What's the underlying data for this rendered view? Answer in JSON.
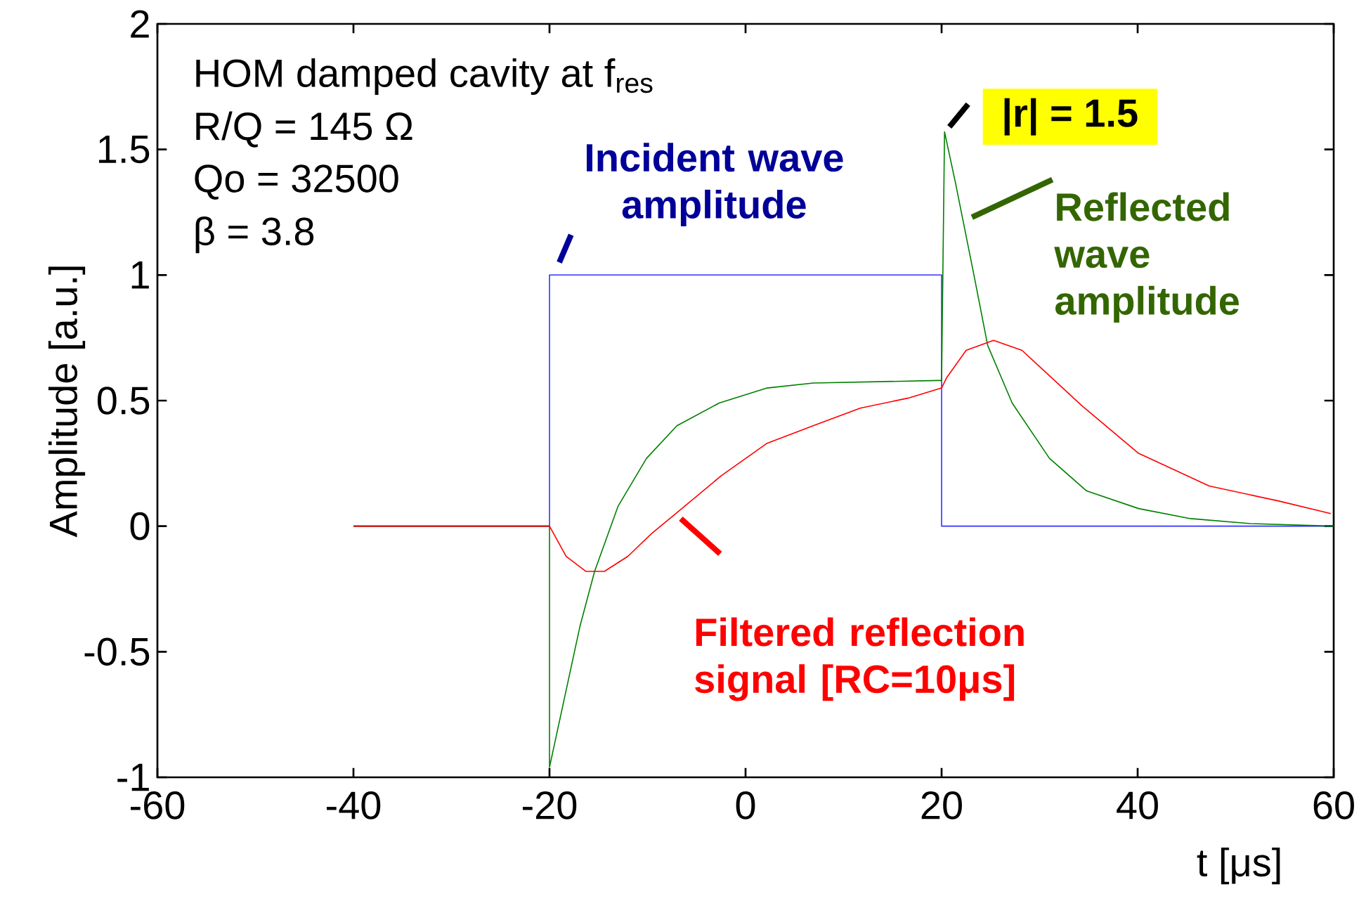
{
  "chart_data": {
    "type": "line",
    "xlabel": "t [μs]",
    "ylabel": "Amplitude [a.u.]",
    "xlim": [
      -60,
      60
    ],
    "ylim": [
      -1,
      2
    ],
    "xticks": [
      -60,
      -40,
      -20,
      0,
      20,
      40,
      60
    ],
    "yticks": [
      -1,
      -0.5,
      0,
      0.5,
      1,
      1.5,
      2
    ],
    "marker": "none",
    "line_style": "solid",
    "series": [
      {
        "color": "#3333ff",
        "x": [
          -40,
          -20,
          -20,
          20,
          20,
          60
        ],
        "values": [
          0,
          0,
          1,
          1,
          0,
          0
        ]
      },
      {
        "color": "#008000",
        "x": [
          -40,
          -20,
          -20,
          -16.9,
          -15.4,
          -13,
          -10.1,
          -7,
          -2.7,
          2.2,
          6.9,
          19.6,
          20,
          20.3,
          21.4,
          23.3,
          24.7,
          27.2,
          31,
          34.8,
          40.1,
          45.4,
          51.5,
          60
        ],
        "values": [
          0,
          0,
          -0.96,
          -0.4,
          -0.18,
          0.08,
          0.27,
          0.4,
          0.49,
          0.55,
          0.57,
          0.58,
          0.58,
          1.57,
          1.37,
          1.0,
          0.72,
          0.49,
          0.27,
          0.14,
          0.07,
          0.03,
          0.01,
          0
        ]
      },
      {
        "color": "#ff0000",
        "x": [
          -40,
          -20,
          -18.3,
          -16.3,
          -14.4,
          -12,
          -9.6,
          -6.8,
          -2.5,
          2.2,
          6.9,
          11.7,
          16.6,
          20,
          20.5,
          22.5,
          25.3,
          28.2,
          34.3,
          40.1,
          47.3,
          54.4,
          59.7
        ],
        "values": [
          0,
          0,
          -0.12,
          -0.18,
          -0.18,
          -0.12,
          -0.03,
          0.06,
          0.2,
          0.33,
          0.4,
          0.47,
          0.51,
          0.55,
          0.59,
          0.7,
          0.74,
          0.7,
          0.48,
          0.29,
          0.16,
          0.1,
          0.05
        ]
      }
    ],
    "annotations": [
      "HOM damped cavity at f$_{res}$",
      "R/Q = 145 Ω",
      "Qo = 32500",
      "β = 3.8",
      {
        "text": "Incident wave amplitude",
        "x": -20,
        "y": 1
      },
      {
        "text": "|r| = 1.5",
        "x": 20.3,
        "y": 1.57
      },
      {
        "text": "Reflected wave amplitude",
        "x": 21.4,
        "y": 1.37
      },
      {
        "text": "Filtered reflection signal [RC=10μs]",
        "x": -6.8,
        "y": 0.06
      }
    ]
  }
}
